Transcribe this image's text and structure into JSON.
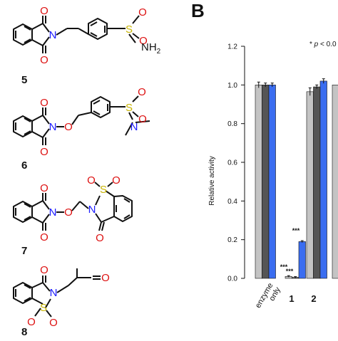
{
  "panel_label": "B",
  "compounds": [
    {
      "id": "5",
      "atoms": {
        "O1": "O",
        "N": "N",
        "S": "S",
        "O2": "O",
        "O3": "O",
        "O4": "O",
        "NH2": "NH",
        "sub": "2"
      }
    },
    {
      "id": "6",
      "atoms": {
        "O1": "O",
        "N": "N",
        "Olink": "O",
        "S": "S",
        "O2": "O",
        "O3": "O",
        "O4": "O",
        "N2": "N"
      }
    },
    {
      "id": "7",
      "atoms": {
        "O1": "O",
        "N": "N",
        "Olink": "O",
        "S": "S",
        "O2": "O",
        "O3": "O",
        "O4": "O",
        "N2": "N",
        "O5": "O"
      }
    },
    {
      "id": "8",
      "atoms": {
        "O1": "O",
        "N": "N",
        "S": "S",
        "O2": "O",
        "O3": "O",
        "Oket": "O"
      }
    }
  ],
  "colors": {
    "oxygen": "#dd1111",
    "nitrogen": "#1a1aff",
    "sulfur": "#c8b400",
    "bond": "#111111"
  },
  "chart_data": {
    "type": "bar",
    "ylabel": "Relative activity",
    "ylim": [
      0,
      1.2
    ],
    "yticks": [
      "0.0",
      "0.2",
      "0.4",
      "0.6",
      "0.8",
      "1.0",
      "1.2"
    ],
    "annotation_prefix": "* ",
    "annotation_p": "p",
    "annotation_rest": " < 0.0",
    "categories": [
      "enzyme only",
      "1",
      "2"
    ],
    "category_lines": [
      [
        "enzyme",
        "only"
      ],
      [
        "1"
      ],
      [
        "2"
      ]
    ],
    "series": [
      {
        "color": "#c4c4c4",
        "values": [
          1.0,
          0.01,
          0.965
        ],
        "errors": [
          0.015,
          0.004,
          0.02
        ]
      },
      {
        "color": "#555555",
        "values": [
          1.0,
          0.005,
          0.99
        ],
        "errors": [
          0.01,
          0.004,
          0.01
        ]
      },
      {
        "color": "#3a6df0",
        "values": [
          1.0,
          0.19,
          1.02
        ],
        "errors": [
          0.01,
          0.005,
          0.012
        ]
      }
    ],
    "significance": [
      {
        "category": "1",
        "label": "***",
        "series": 0
      },
      {
        "category": "1",
        "label": "***",
        "series": 1
      },
      {
        "category": "1",
        "label": "***",
        "series": 2
      }
    ],
    "partial_next_bar": {
      "color": "#c4c4c4",
      "value": 1.0
    }
  }
}
